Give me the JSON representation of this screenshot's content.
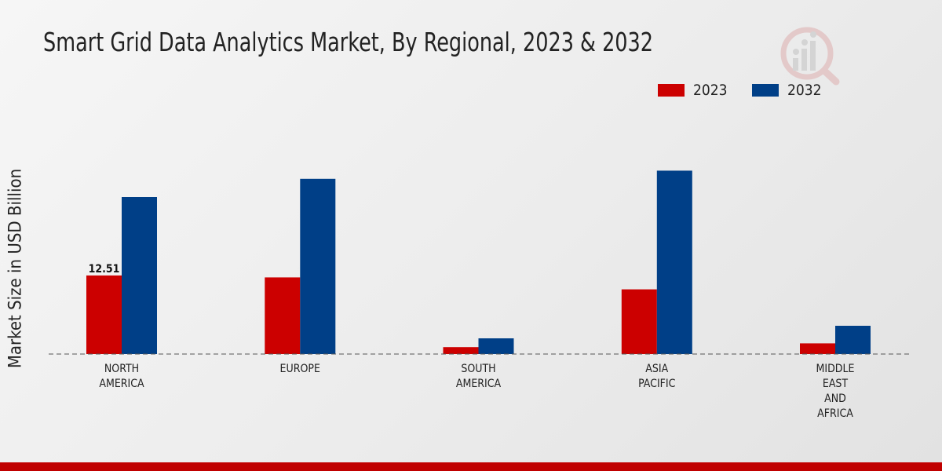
{
  "chart_data": {
    "type": "bar",
    "title": "Smart Grid Data Analytics Market, By Regional, 2023 & 2032",
    "xlabel": "",
    "ylabel": "Market Size in USD Billion",
    "categories": [
      [
        "NORTH",
        "AMERICA"
      ],
      [
        "EUROPE"
      ],
      [
        "SOUTH",
        "AMERICA"
      ],
      [
        "ASIA",
        "PACIFIC"
      ],
      [
        "MIDDLE",
        "EAST",
        "AND",
        "AFRICA"
      ]
    ],
    "series": [
      {
        "name": "2023",
        "color": "#cc0000",
        "values": [
          12.51,
          12.2,
          1.1,
          10.3,
          1.7
        ]
      },
      {
        "name": "2032",
        "color": "#003f87",
        "values": [
          25.0,
          27.9,
          2.5,
          29.2,
          4.5
        ]
      }
    ],
    "data_labels": [
      {
        "series": 0,
        "index": 0,
        "text": "12.51"
      }
    ],
    "ylim": [
      0,
      40
    ],
    "grid": false,
    "legend": "top-right"
  }
}
